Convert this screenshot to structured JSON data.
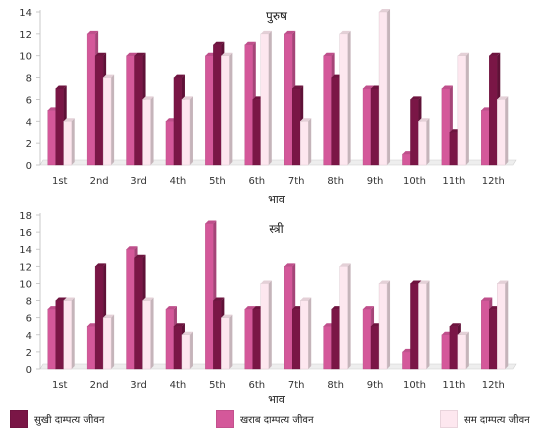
{
  "colors": {
    "happy": "#7a1646",
    "bad": "#d4589a",
    "normal": "#fde7ef"
  },
  "legend": [
    {
      "label": "सुखी दाम्पत्य जीवन",
      "color_key": "happy"
    },
    {
      "label": "खराब दाम्पत्य जीवन",
      "color_key": "bad"
    },
    {
      "label": "सम दाम्पत्य जीवन",
      "color_key": "normal"
    }
  ],
  "chart_data": [
    {
      "type": "bar",
      "title": "पुरुष",
      "xlabel": "भाव",
      "ylabel": "",
      "ylim": [
        0,
        14
      ],
      "yticks": [
        0,
        2,
        4,
        6,
        8,
        10,
        12,
        14
      ],
      "categories": [
        "1st",
        "2nd",
        "3rd",
        "4th",
        "5th",
        "6th",
        "7th",
        "8th",
        "9th",
        "10th",
        "11th",
        "12th"
      ],
      "series": [
        {
          "name": "सुखी दाम्पत्य जीवन",
          "values": [
            7,
            10,
            10,
            8,
            11,
            6,
            7,
            8,
            7,
            6,
            3,
            10
          ]
        },
        {
          "name": "खराब दाम्पत्य जीवन",
          "values": [
            5,
            12,
            10,
            4,
            10,
            11,
            12,
            10,
            7,
            1,
            7,
            5
          ]
        },
        {
          "name": "सम दाम्पत्य जीवन",
          "values": [
            4,
            8,
            6,
            6,
            10,
            12,
            4,
            12,
            14,
            4,
            10,
            6
          ]
        }
      ]
    },
    {
      "type": "bar",
      "title": "स्त्री",
      "xlabel": "भाव",
      "ylabel": "",
      "ylim": [
        0,
        18
      ],
      "yticks": [
        0,
        2,
        4,
        6,
        8,
        10,
        12,
        14,
        16,
        18
      ],
      "categories": [
        "1st",
        "2nd",
        "3rd",
        "4th",
        "5th",
        "6th",
        "7th",
        "8th",
        "9th",
        "10th",
        "11th",
        "12th"
      ],
      "series": [
        {
          "name": "सुखी दाम्पत्य जीवन",
          "values": [
            8,
            12,
            13,
            5,
            8,
            7,
            7,
            7,
            5,
            10,
            5,
            7
          ]
        },
        {
          "name": "खराब दाम्पत्य जीवन",
          "values": [
            7,
            5,
            14,
            7,
            17,
            7,
            12,
            5,
            7,
            2,
            4,
            8
          ]
        },
        {
          "name": "सम दाम्पत्य जीवन",
          "values": [
            8,
            6,
            8,
            4,
            6,
            10,
            8,
            12,
            10,
            10,
            4,
            10
          ]
        }
      ]
    }
  ]
}
